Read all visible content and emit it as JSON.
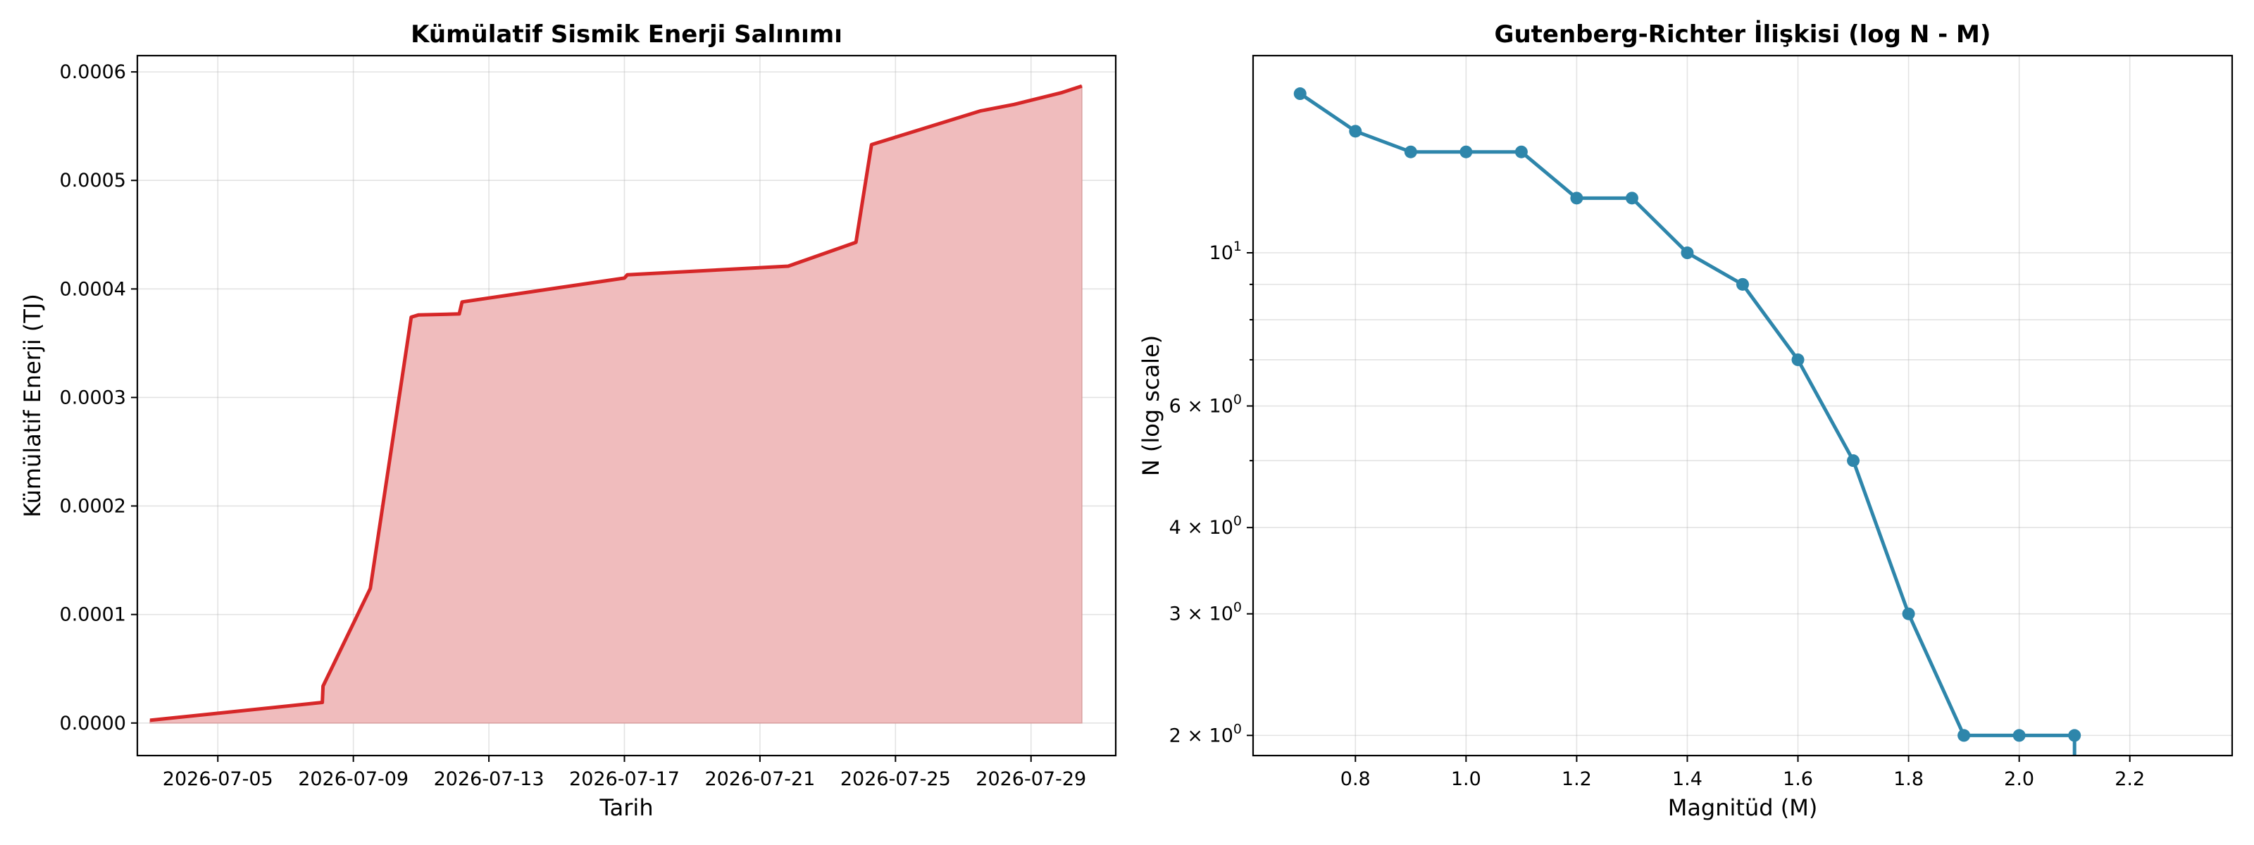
{
  "chart_data": [
    {
      "type": "area",
      "title": "Kümülatif Sismik Enerji Salınımı",
      "xlabel": "Tarih",
      "ylabel": "Kümülatif Enerji (TJ)",
      "xlim": [
        "2026-07-02T15:00",
        "2026-07-31T12:00"
      ],
      "ylim": [
        -3e-05,
        0.000615
      ],
      "grid": true,
      "line_color": "#d62728",
      "fill_color": "#f0bcbd",
      "x_ticks": [
        "2026-07-05",
        "2026-07-09",
        "2026-07-13",
        "2026-07-17",
        "2026-07-21",
        "2026-07-25",
        "2026-07-29"
      ],
      "y_ticks": [
        0.0,
        0.0001,
        0.0002,
        0.0003,
        0.0004,
        0.0005,
        0.0006
      ],
      "y_tick_labels": [
        "0.0000",
        "0.0001",
        "0.0002",
        "0.0003",
        "0.0004",
        "0.0005",
        "0.0006"
      ],
      "series": [
        {
          "x": [
            "2026-07-03T00:00",
            "2026-07-08T02:00",
            "2026-07-08T02:30",
            "2026-07-09T12:00",
            "2026-07-10T17:00",
            "2026-07-10T22:00",
            "2026-07-12T03:00",
            "2026-07-12T05:00",
            "2026-07-17T00:00",
            "2026-07-17T02:00",
            "2026-07-21T20:00",
            "2026-07-23T20:00",
            "2026-07-24T07:00",
            "2026-07-27T12:00",
            "2026-07-28T12:00",
            "2026-07-29T22:00",
            "2026-07-30T12:00"
          ],
          "y": [
            2.5e-06,
            1.9e-05,
            3.4e-05,
            0.000124,
            0.000374,
            0.000376,
            0.000377,
            0.000388,
            0.00041,
            0.000413,
            0.000421,
            0.000443,
            0.000533,
            0.000564,
            0.00057,
            0.000581,
            0.000587
          ]
        }
      ]
    },
    {
      "type": "line",
      "title": "Gutenberg-Richter İlişkisi (log N - M)",
      "xlabel": "Magnitüd (M)",
      "ylabel": "N (log scale)",
      "xlim": [
        0.615,
        2.385
      ],
      "ylim": [
        1.87,
        19.3
      ],
      "y_scale": "log",
      "grid": true,
      "line_color": "#2e86ab",
      "x_ticks": [
        0.8,
        1.0,
        1.2,
        1.4,
        1.6,
        1.8,
        2.0,
        2.2
      ],
      "x_tick_labels": [
        "0.8",
        "1.0",
        "1.2",
        "1.4",
        "1.6",
        "1.8",
        "2.0",
        "2.2"
      ],
      "y_major_ticks": [
        {
          "value": 10,
          "base": "10",
          "exp": "1"
        },
        {
          "value": 6,
          "base": "6 × 10",
          "exp": "0"
        },
        {
          "value": 4,
          "base": "4 × 10",
          "exp": "0"
        },
        {
          "value": 3,
          "base": "3 × 10",
          "exp": "0"
        },
        {
          "value": 2,
          "base": "2 × 10",
          "exp": "0"
        }
      ],
      "y_minor_ticks": [
        5,
        7,
        8,
        9
      ],
      "series": [
        {
          "x": [
            0.7,
            0.8,
            0.9,
            1.0,
            1.1,
            1.2,
            1.3,
            1.4,
            1.5,
            1.6,
            1.7,
            1.8,
            1.9,
            2.0,
            2.1
          ],
          "y": [
            17,
            15,
            14,
            14,
            14,
            12,
            12,
            10,
            9,
            7,
            5,
            3,
            2,
            2,
            2
          ]
        }
      ]
    }
  ]
}
